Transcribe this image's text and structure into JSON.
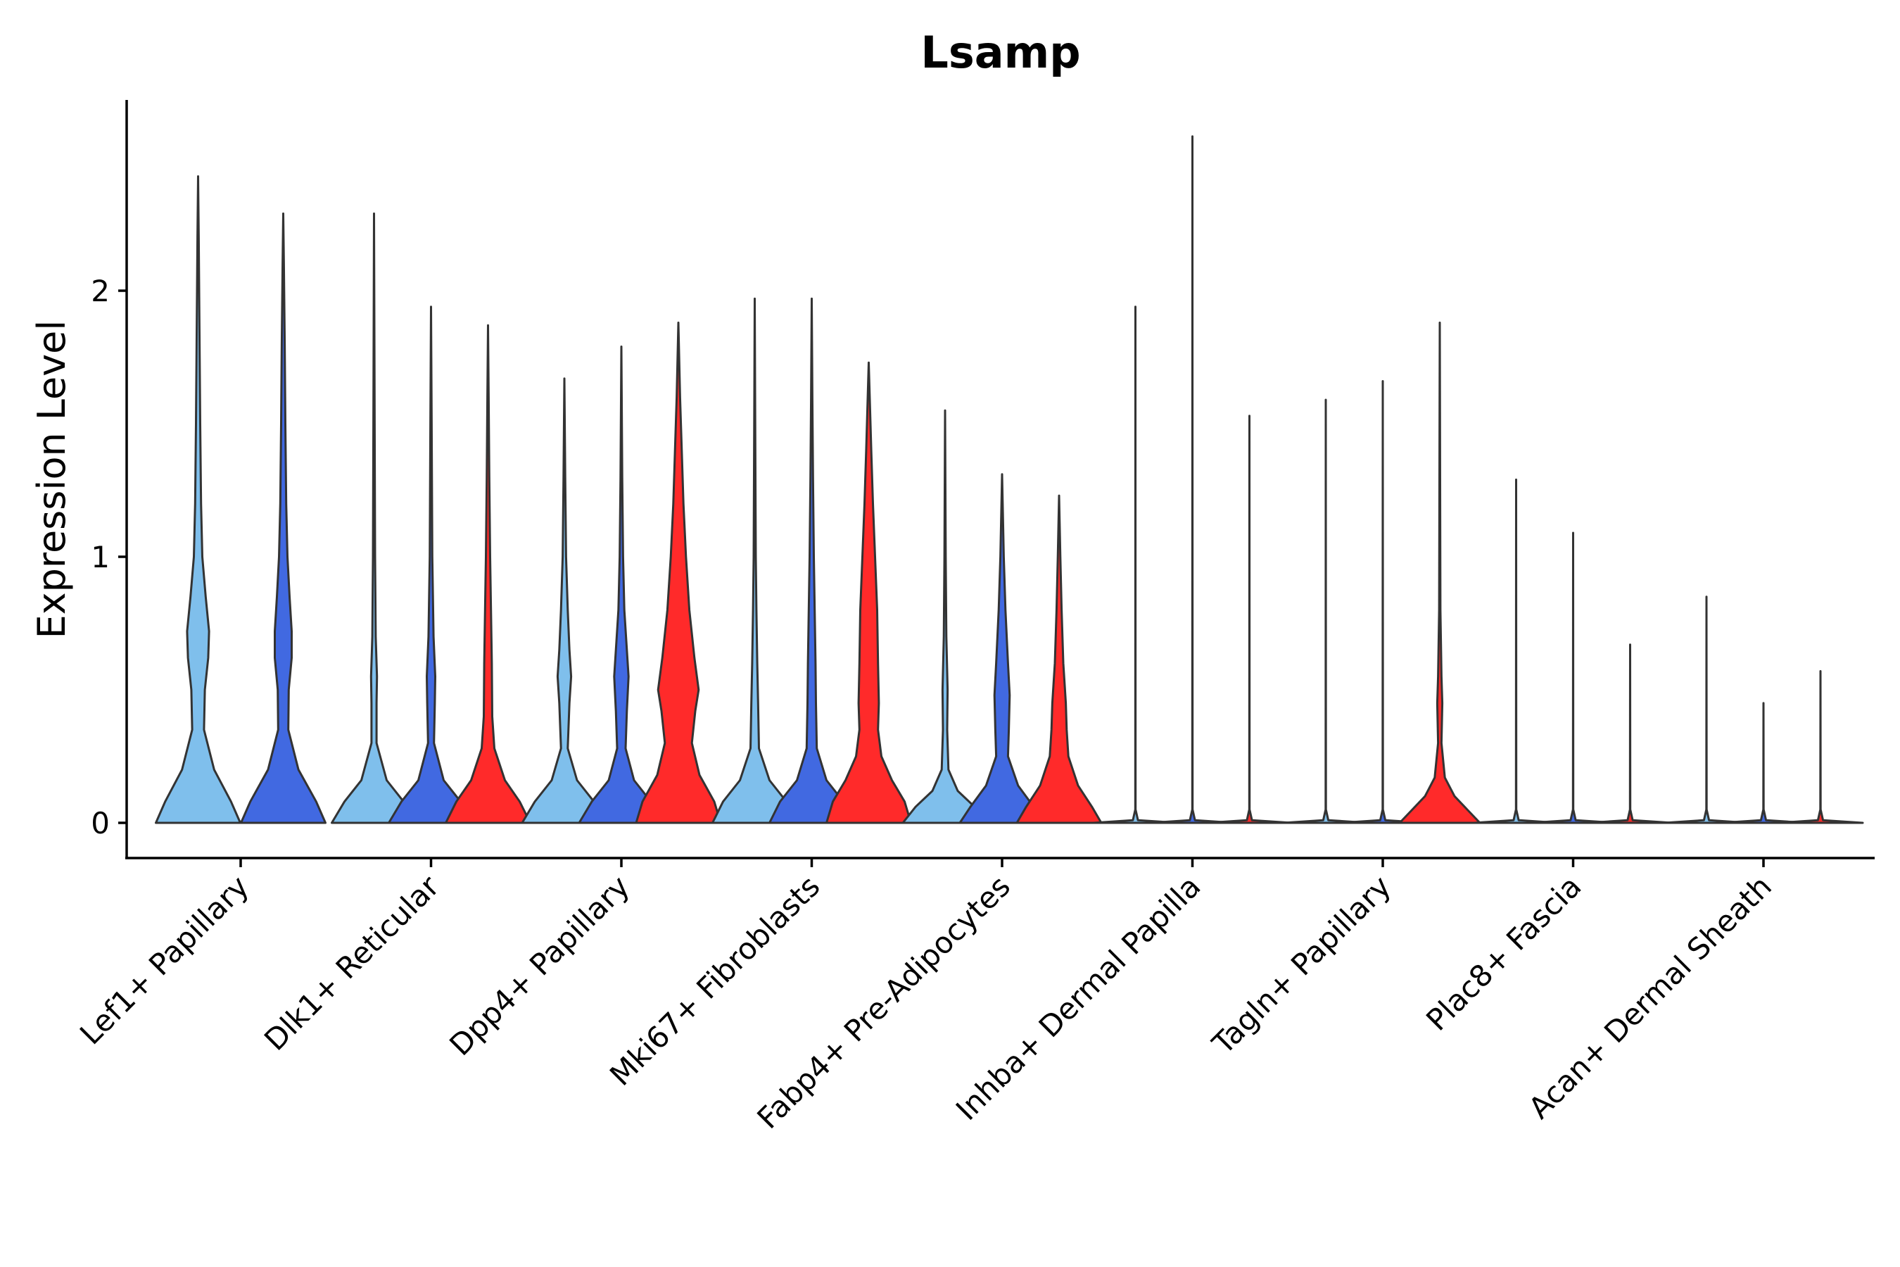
{
  "chart_data": {
    "type": "violin",
    "title": "Lsamp",
    "ylabel": "Expression Level",
    "xlabel": "",
    "ylim": [
      -0.13,
      2.7
    ],
    "yticks": [
      0,
      1,
      2
    ],
    "grid": false,
    "legend": "none",
    "colors": {
      "light_blue": "#7fbfec",
      "blue": "#4169e1",
      "red": "#ff2a2a",
      "outline": "#333333"
    },
    "categories": [
      {
        "label": "Lef1+ Papillary",
        "violins": [
          {
            "color": "light_blue",
            "max": 2.43,
            "profile": [
              [
                0,
                1.0
              ],
              [
                0.08,
                0.78
              ],
              [
                0.2,
                0.38
              ],
              [
                0.35,
                0.14
              ],
              [
                0.5,
                0.16
              ],
              [
                0.62,
                0.24
              ],
              [
                0.72,
                0.26
              ],
              [
                0.85,
                0.18
              ],
              [
                1.0,
                0.1
              ],
              [
                1.2,
                0.07
              ],
              [
                1.5,
                0.05
              ],
              [
                1.8,
                0.035
              ],
              [
                2.2,
                0.015
              ],
              [
                2.43,
                0.0
              ]
            ]
          },
          {
            "color": "blue",
            "max": 2.29,
            "profile": [
              [
                0,
                1.0
              ],
              [
                0.08,
                0.78
              ],
              [
                0.2,
                0.36
              ],
              [
                0.35,
                0.12
              ],
              [
                0.5,
                0.13
              ],
              [
                0.62,
                0.2
              ],
              [
                0.72,
                0.2
              ],
              [
                0.85,
                0.15
              ],
              [
                1.0,
                0.1
              ],
              [
                1.2,
                0.07
              ],
              [
                1.5,
                0.05
              ],
              [
                1.8,
                0.035
              ],
              [
                2.1,
                0.015
              ],
              [
                2.29,
                0.0
              ]
            ]
          }
        ]
      },
      {
        "label": "Dlk1+ Reticular",
        "violins": [
          {
            "color": "light_blue",
            "max": 2.29,
            "profile": [
              [
                0,
                1.0
              ],
              [
                0.08,
                0.7
              ],
              [
                0.16,
                0.3
              ],
              [
                0.3,
                0.06
              ],
              [
                0.45,
                0.06
              ],
              [
                0.55,
                0.07
              ],
              [
                0.7,
                0.04
              ],
              [
                1.0,
                0.025
              ],
              [
                1.5,
                0.015
              ],
              [
                2.29,
                0.0
              ]
            ]
          },
          {
            "color": "blue",
            "max": 1.94,
            "profile": [
              [
                0,
                1.0
              ],
              [
                0.08,
                0.7
              ],
              [
                0.16,
                0.3
              ],
              [
                0.3,
                0.07
              ],
              [
                0.45,
                0.09
              ],
              [
                0.55,
                0.1
              ],
              [
                0.7,
                0.06
              ],
              [
                1.0,
                0.03
              ],
              [
                1.5,
                0.015
              ],
              [
                1.94,
                0.0
              ]
            ]
          },
          {
            "color": "red",
            "max": 1.87,
            "profile": [
              [
                0,
                1.0
              ],
              [
                0.08,
                0.75
              ],
              [
                0.16,
                0.4
              ],
              [
                0.28,
                0.15
              ],
              [
                0.4,
                0.1
              ],
              [
                0.6,
                0.09
              ],
              [
                0.8,
                0.07
              ],
              [
                1.0,
                0.05
              ],
              [
                1.3,
                0.03
              ],
              [
                1.6,
                0.015
              ],
              [
                1.87,
                0.0
              ]
            ]
          }
        ]
      },
      {
        "label": "Dpp4+ Papillary",
        "violins": [
          {
            "color": "light_blue",
            "max": 1.67,
            "profile": [
              [
                0,
                1.0
              ],
              [
                0.08,
                0.7
              ],
              [
                0.16,
                0.3
              ],
              [
                0.28,
                0.08
              ],
              [
                0.45,
                0.12
              ],
              [
                0.55,
                0.16
              ],
              [
                0.65,
                0.12
              ],
              [
                0.8,
                0.08
              ],
              [
                1.0,
                0.04
              ],
              [
                1.3,
                0.02
              ],
              [
                1.67,
                0.0
              ]
            ]
          },
          {
            "color": "blue",
            "max": 1.79,
            "profile": [
              [
                0,
                1.0
              ],
              [
                0.08,
                0.7
              ],
              [
                0.16,
                0.3
              ],
              [
                0.28,
                0.1
              ],
              [
                0.42,
                0.13
              ],
              [
                0.55,
                0.17
              ],
              [
                0.65,
                0.13
              ],
              [
                0.8,
                0.07
              ],
              [
                1.0,
                0.04
              ],
              [
                1.3,
                0.02
              ],
              [
                1.79,
                0.0
              ]
            ]
          },
          {
            "color": "red",
            "max": 1.88,
            "profile": [
              [
                0,
                1.0
              ],
              [
                0.08,
                0.85
              ],
              [
                0.18,
                0.5
              ],
              [
                0.3,
                0.32
              ],
              [
                0.42,
                0.4
              ],
              [
                0.5,
                0.48
              ],
              [
                0.62,
                0.38
              ],
              [
                0.8,
                0.26
              ],
              [
                1.0,
                0.18
              ],
              [
                1.2,
                0.12
              ],
              [
                1.4,
                0.08
              ],
              [
                1.6,
                0.04
              ],
              [
                1.88,
                0.0
              ]
            ]
          }
        ]
      },
      {
        "label": "Mki67+ Fibroblasts",
        "violins": [
          {
            "color": "light_blue",
            "max": 1.97,
            "profile": [
              [
                0,
                1.0
              ],
              [
                0.08,
                0.75
              ],
              [
                0.16,
                0.35
              ],
              [
                0.28,
                0.1
              ],
              [
                0.45,
                0.08
              ],
              [
                0.6,
                0.06
              ],
              [
                0.8,
                0.04
              ],
              [
                1.0,
                0.025
              ],
              [
                1.5,
                0.012
              ],
              [
                1.97,
                0.0
              ]
            ]
          },
          {
            "color": "blue",
            "max": 1.97,
            "profile": [
              [
                0,
                1.0
              ],
              [
                0.08,
                0.75
              ],
              [
                0.16,
                0.35
              ],
              [
                0.28,
                0.12
              ],
              [
                0.45,
                0.1
              ],
              [
                0.6,
                0.09
              ],
              [
                0.8,
                0.07
              ],
              [
                1.0,
                0.05
              ],
              [
                1.3,
                0.03
              ],
              [
                1.6,
                0.015
              ],
              [
                1.97,
                0.0
              ]
            ]
          },
          {
            "color": "red",
            "max": 1.73,
            "profile": [
              [
                0,
                1.0
              ],
              [
                0.08,
                0.85
              ],
              [
                0.16,
                0.55
              ],
              [
                0.25,
                0.3
              ],
              [
                0.35,
                0.22
              ],
              [
                0.45,
                0.24
              ],
              [
                0.6,
                0.22
              ],
              [
                0.8,
                0.2
              ],
              [
                1.0,
                0.15
              ],
              [
                1.2,
                0.1
              ],
              [
                1.4,
                0.06
              ],
              [
                1.73,
                0.0
              ]
            ]
          }
        ]
      },
      {
        "label": "Fabp4+ Pre-Adipocytes",
        "violins": [
          {
            "color": "light_blue",
            "max": 1.55,
            "profile": [
              [
                0,
                1.0
              ],
              [
                0.06,
                0.7
              ],
              [
                0.12,
                0.3
              ],
              [
                0.2,
                0.08
              ],
              [
                0.35,
                0.05
              ],
              [
                0.5,
                0.06
              ],
              [
                0.7,
                0.03
              ],
              [
                1.0,
                0.015
              ],
              [
                1.55,
                0.0
              ]
            ]
          },
          {
            "color": "blue",
            "max": 1.31,
            "profile": [
              [
                0,
                1.0
              ],
              [
                0.06,
                0.75
              ],
              [
                0.14,
                0.38
              ],
              [
                0.25,
                0.14
              ],
              [
                0.35,
                0.16
              ],
              [
                0.48,
                0.18
              ],
              [
                0.6,
                0.14
              ],
              [
                0.8,
                0.08
              ],
              [
                1.0,
                0.04
              ],
              [
                1.31,
                0.0
              ]
            ]
          },
          {
            "color": "red",
            "max": 1.23,
            "profile": [
              [
                0,
                1.0
              ],
              [
                0.06,
                0.78
              ],
              [
                0.14,
                0.45
              ],
              [
                0.25,
                0.22
              ],
              [
                0.35,
                0.18
              ],
              [
                0.45,
                0.16
              ],
              [
                0.6,
                0.1
              ],
              [
                0.8,
                0.06
              ],
              [
                1.0,
                0.03
              ],
              [
                1.23,
                0.0
              ]
            ]
          }
        ]
      },
      {
        "label": "Inhba+ Dermal Papilla",
        "violins": [
          {
            "color": "light_blue",
            "max": 1.94,
            "profile": [
              [
                0,
                1.0
              ],
              [
                0.01,
                0.06
              ],
              [
                0.05,
                0.003
              ],
              [
                1.94,
                0.0
              ]
            ]
          },
          {
            "color": "blue",
            "max": 2.58,
            "profile": [
              [
                0,
                1.0
              ],
              [
                0.01,
                0.06
              ],
              [
                0.05,
                0.003
              ],
              [
                2.58,
                0.0
              ]
            ]
          },
          {
            "color": "red",
            "max": 1.53,
            "profile": [
              [
                0,
                1.0
              ],
              [
                0.01,
                0.06
              ],
              [
                0.05,
                0.003
              ],
              [
                1.53,
                0.0
              ]
            ]
          }
        ]
      },
      {
        "label": "Tagln+ Papillary",
        "violins": [
          {
            "color": "light_blue",
            "max": 1.59,
            "profile": [
              [
                0,
                1.0
              ],
              [
                0.01,
                0.06
              ],
              [
                0.05,
                0.003
              ],
              [
                1.59,
                0.0
              ]
            ]
          },
          {
            "color": "blue",
            "max": 1.66,
            "profile": [
              [
                0,
                1.0
              ],
              [
                0.01,
                0.06
              ],
              [
                0.05,
                0.003
              ],
              [
                1.66,
                0.0
              ]
            ]
          },
          {
            "color": "red",
            "max": 1.88,
            "profile": [
              [
                0,
                0.95
              ],
              [
                0.05,
                0.65
              ],
              [
                0.1,
                0.35
              ],
              [
                0.17,
                0.12
              ],
              [
                0.3,
                0.04
              ],
              [
                0.45,
                0.06
              ],
              [
                0.55,
                0.04
              ],
              [
                0.8,
                0.015
              ],
              [
                1.88,
                0.0
              ]
            ]
          }
        ]
      },
      {
        "label": "Plac8+ Fascia",
        "violins": [
          {
            "color": "light_blue",
            "max": 1.29,
            "profile": [
              [
                0,
                1.0
              ],
              [
                0.01,
                0.06
              ],
              [
                0.05,
                0.003
              ],
              [
                1.29,
                0.0
              ]
            ]
          },
          {
            "color": "blue",
            "max": 1.09,
            "profile": [
              [
                0,
                1.0
              ],
              [
                0.01,
                0.06
              ],
              [
                0.05,
                0.003
              ],
              [
                1.09,
                0.0
              ]
            ]
          },
          {
            "color": "red",
            "max": 0.67,
            "profile": [
              [
                0,
                1.0
              ],
              [
                0.01,
                0.06
              ],
              [
                0.05,
                0.003
              ],
              [
                0.67,
                0.0
              ]
            ]
          }
        ]
      },
      {
        "label": "Acan+ Dermal Sheath",
        "violins": [
          {
            "color": "light_blue",
            "max": 0.85,
            "profile": [
              [
                0,
                1.0
              ],
              [
                0.01,
                0.06
              ],
              [
                0.05,
                0.003
              ],
              [
                0.85,
                0.0
              ]
            ]
          },
          {
            "color": "blue",
            "max": 0.45,
            "profile": [
              [
                0,
                1.0
              ],
              [
                0.01,
                0.06
              ],
              [
                0.05,
                0.003
              ],
              [
                0.45,
                0.0
              ]
            ]
          },
          {
            "color": "red",
            "max": 0.57,
            "profile": [
              [
                0,
                1.0
              ],
              [
                0.01,
                0.06
              ],
              [
                0.05,
                0.003
              ],
              [
                0.57,
                0.0
              ]
            ]
          }
        ]
      }
    ]
  }
}
